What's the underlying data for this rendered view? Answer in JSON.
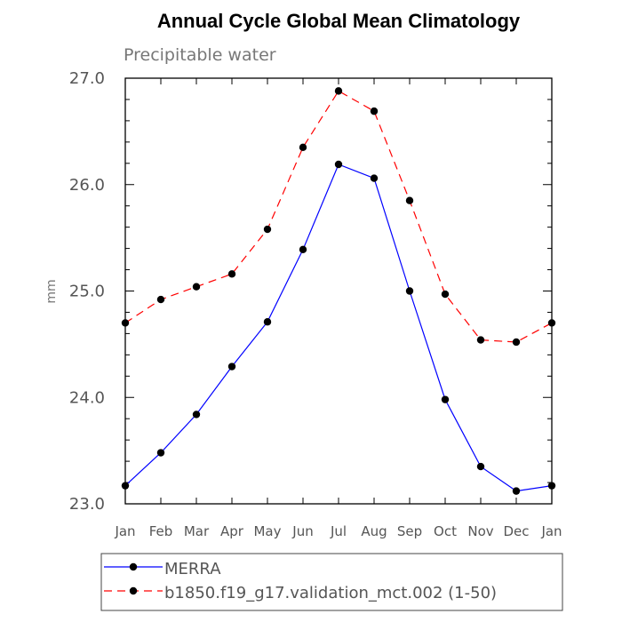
{
  "chart_data": {
    "type": "line",
    "title": "Annual Cycle Global Mean Climatology",
    "subtitle": "Precipitable water",
    "xlabel": "",
    "ylabel": "mm",
    "categories": [
      "Jan",
      "Feb",
      "Mar",
      "Apr",
      "May",
      "Jun",
      "Jul",
      "Aug",
      "Sep",
      "Oct",
      "Nov",
      "Dec",
      "Jan"
    ],
    "ylim": [
      23.0,
      27.0
    ],
    "yticks": [
      "23.0",
      "24.0",
      "25.0",
      "26.0",
      "27.0"
    ],
    "series": [
      {
        "name": "MERRA",
        "color": "#0000ff",
        "dash": "solid",
        "values": [
          23.17,
          23.48,
          23.84,
          24.29,
          24.71,
          25.39,
          26.19,
          26.06,
          25.0,
          23.98,
          23.35,
          23.12,
          23.17
        ]
      },
      {
        "name": "b1850.f19_g17.validation_mct.002 (1-50)",
        "color": "#ff0000",
        "dash": "dashed",
        "values": [
          24.7,
          24.92,
          25.04,
          25.16,
          25.58,
          26.35,
          26.88,
          26.69,
          25.85,
          24.97,
          24.54,
          24.52,
          24.7
        ]
      }
    ],
    "legend_position": "bottom"
  }
}
